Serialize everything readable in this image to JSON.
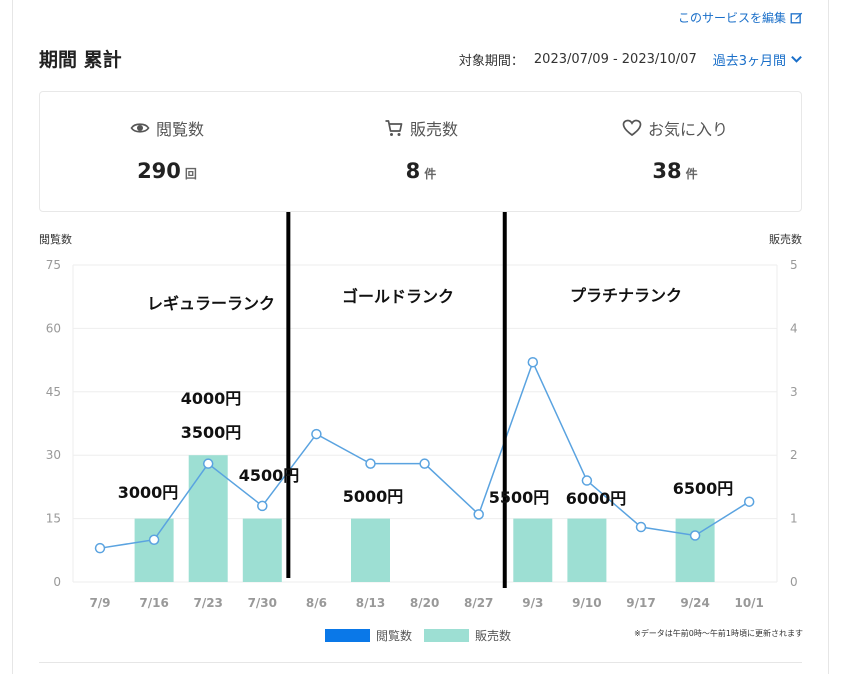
{
  "header": {
    "edit_link": "このサービスを編集",
    "period_title": "期間 累計",
    "range_label": "対象期間：",
    "range_value": "2023/07/09 - 2023/10/07",
    "range_select": "過去3ヶ月間"
  },
  "stats": [
    {
      "label": "閲覧数",
      "value": "290",
      "unit": "回",
      "icon": "eye-icon"
    },
    {
      "label": "販売数",
      "value": "8",
      "unit": "件",
      "icon": "cart-icon"
    },
    {
      "label": "お気に入り",
      "value": "38",
      "unit": "件",
      "icon": "heart-icon"
    }
  ],
  "colors": {
    "accent": "#1a6fc9",
    "line": "#5aa3e0",
    "bar": "#9ddfd3",
    "legend_views": "#0a78e8"
  },
  "chart_data": {
    "type": "bar+line",
    "categories": [
      "7/9",
      "7/16",
      "7/23",
      "7/30",
      "8/6",
      "8/13",
      "8/20",
      "8/27",
      "9/3",
      "9/10",
      "9/17",
      "9/24",
      "10/1"
    ],
    "y_left_label": "閲覧数",
    "y_right_label": "販売数",
    "y_left_ticks": [
      "0",
      "15",
      "30",
      "45",
      "60",
      "75"
    ],
    "y_right_ticks": [
      "0",
      "1",
      "2",
      "3",
      "4",
      "5"
    ],
    "ylim_left": [
      0,
      75
    ],
    "ylim_right": [
      0,
      5
    ],
    "series": [
      {
        "name": "閲覧数",
        "type": "line",
        "axis": "left",
        "values": [
          8,
          10,
          28,
          18,
          35,
          28,
          28,
          16,
          52,
          24,
          13,
          11,
          19
        ]
      },
      {
        "name": "販売数",
        "type": "bar",
        "axis": "right",
        "values": [
          0,
          1,
          2,
          1,
          0,
          1,
          0,
          0,
          1,
          1,
          0,
          1,
          0
        ]
      }
    ],
    "annotations": {
      "ranks": [
        {
          "text": "レギュラーランク",
          "between": [
            0,
            3
          ]
        },
        {
          "text": "ゴールドランク",
          "between": [
            4,
            7
          ]
        },
        {
          "text": "プラチナランク",
          "between": [
            8,
            12
          ]
        }
      ],
      "dividers_after": [
        3,
        7
      ],
      "prices": [
        {
          "text": "3000円",
          "at": 1,
          "level": 0
        },
        {
          "text": "4000円",
          "at": 2,
          "level": 2
        },
        {
          "text": "3500円",
          "at": 2,
          "level": 1
        },
        {
          "text": "4500円",
          "at": 3,
          "level": 0
        },
        {
          "text": "5000円",
          "at": 5,
          "level": 0
        },
        {
          "text": "5500円",
          "at": 8,
          "level": 0
        },
        {
          "text": "6000円",
          "at": 9,
          "level": 0
        },
        {
          "text": "6500円",
          "at": 11,
          "level": 0
        }
      ]
    },
    "legend": [
      "閲覧数",
      "販売数"
    ],
    "grid": true
  },
  "note": "※データは午前0時〜午前1時頃に更新されます"
}
